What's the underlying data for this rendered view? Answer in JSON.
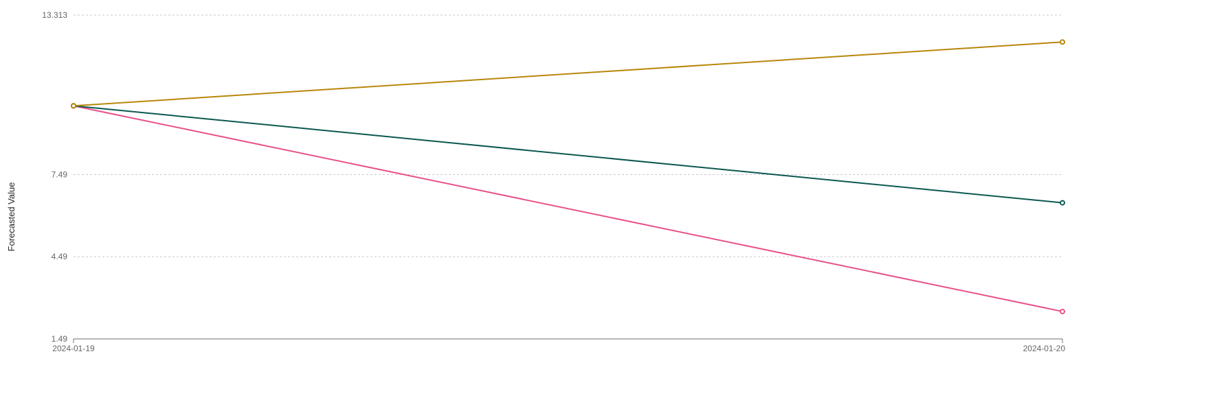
{
  "chart_data": {
    "type": "line",
    "title": "",
    "xlabel": "",
    "ylabel": "Forecasted Value",
    "x": [
      "2024-01-19",
      "2024-01-20"
    ],
    "ylim": [
      1.49,
      13.313
    ],
    "yticks": [
      1.49,
      4.49,
      7.49,
      13.313
    ],
    "ytick_labels": [
      "1.49",
      "4.49",
      "7.49",
      "13.313"
    ],
    "grid": true,
    "legend": "none",
    "series": [
      {
        "color": "#B8860B",
        "values": [
          10.0,
          12.33
        ]
      },
      {
        "color": "#0B5750",
        "values": [
          10.0,
          6.46
        ]
      },
      {
        "color": "#E8508A",
        "values": [
          10.0,
          2.49
        ]
      }
    ]
  }
}
